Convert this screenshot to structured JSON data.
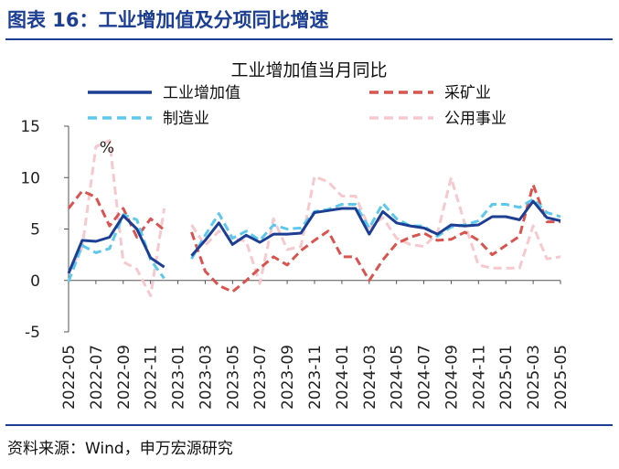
{
  "figure": {
    "title": "图表 16：工业增加值及分项同比增速",
    "source": "资料来源：Wind，申万宏源研究"
  },
  "chart_data": {
    "type": "line",
    "title": "工业增加值当月同比",
    "unit_label": "%",
    "ylim": [
      -5,
      15
    ],
    "yticks": [
      -5,
      0,
      5,
      10,
      15
    ],
    "xlabel": "",
    "ylabel": "%",
    "grid": false,
    "x": [
      "2022-05",
      "2022-06",
      "2022-07",
      "2022-08",
      "2022-09",
      "2022-10",
      "2022-11",
      "2022-12",
      "2023-01",
      "2023-02",
      "2023-03",
      "2023-04",
      "2023-05",
      "2023-06",
      "2023-07",
      "2023-08",
      "2023-09",
      "2023-10",
      "2023-11",
      "2023-12",
      "2024-01",
      "2024-02",
      "2024-03",
      "2024-04",
      "2024-05",
      "2024-06",
      "2024-07",
      "2024-08",
      "2024-09",
      "2024-10",
      "2024-11",
      "2024-12",
      "2025-01",
      "2025-02",
      "2025-03",
      "2025-04",
      "2025-05"
    ],
    "xtick_labels": [
      "2022-05",
      "2022-07",
      "2022-09",
      "2022-11",
      "2023-01",
      "2023-03",
      "2023-05",
      "2023-07",
      "2023-09",
      "2023-11",
      "2024-01",
      "2024-03",
      "2024-05",
      "2024-07",
      "2024-09",
      "2024-11",
      "2025-01",
      "2025-03",
      "2025-05"
    ],
    "series": [
      {
        "name": "工业增加值",
        "color": "#1c3f94",
        "style": "solid",
        "values": [
          0.7,
          3.9,
          3.8,
          4.2,
          6.3,
          5.0,
          2.2,
          1.3,
          null,
          2.4,
          3.9,
          5.6,
          3.5,
          4.4,
          3.7,
          4.5,
          4.5,
          4.6,
          6.6,
          6.8,
          7.0,
          7.0,
          4.5,
          6.7,
          5.6,
          5.3,
          5.1,
          4.5,
          5.4,
          5.3,
          5.4,
          6.2,
          6.2,
          5.9,
          7.7,
          6.1,
          5.8
        ]
      },
      {
        "name": "采矿业",
        "color": "#d9534f",
        "style": "dashed",
        "values": [
          7.0,
          8.7,
          8.1,
          5.3,
          7.0,
          4.2,
          6.0,
          4.9,
          null,
          4.7,
          0.9,
          -0.5,
          -1.1,
          0.0,
          1.2,
          2.3,
          1.5,
          2.9,
          3.9,
          4.8,
          2.3,
          2.3,
          0.0,
          2.0,
          3.6,
          4.2,
          4.6,
          3.9,
          4.0,
          4.7,
          3.9,
          2.5,
          3.4,
          4.3,
          9.3,
          5.7,
          5.7
        ]
      },
      {
        "name": "制造业",
        "color": "#5bc8ec",
        "style": "dashed",
        "values": [
          -0.1,
          3.4,
          2.7,
          3.1,
          6.4,
          5.9,
          2.0,
          0.2,
          null,
          2.1,
          4.4,
          6.5,
          4.1,
          4.8,
          3.9,
          5.4,
          5.0,
          5.1,
          6.7,
          6.9,
          7.4,
          7.4,
          5.1,
          7.5,
          6.0,
          5.3,
          5.3,
          4.3,
          5.2,
          5.4,
          5.8,
          7.4,
          7.4,
          7.1,
          7.9,
          6.6,
          6.2
        ]
      },
      {
        "name": "公用事业",
        "color": "#f5c9ce",
        "style": "dashed",
        "values": [
          0.7,
          3.2,
          13.0,
          13.6,
          1.8,
          1.1,
          -1.5,
          7.0,
          null,
          5.4,
          3.4,
          4.8,
          4.1,
          3.8,
          -0.3,
          6.0,
          3.0,
          3.3,
          10.1,
          9.6,
          8.2,
          8.2,
          5.1,
          6.1,
          4.1,
          3.5,
          3.3,
          4.6,
          10.0,
          5.5,
          1.5,
          1.2,
          1.2,
          1.2,
          5.3,
          2.1,
          2.3
        ]
      }
    ],
    "legend": {
      "placement": "top",
      "columns": 2
    }
  }
}
